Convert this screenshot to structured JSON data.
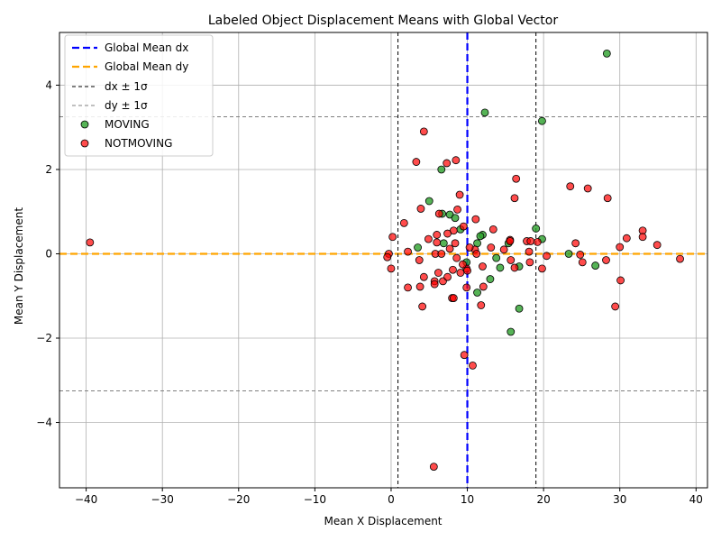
{
  "chart_data": {
    "type": "scatter",
    "title": "Labeled Object Displacement Means with Global Vector",
    "xlabel": "Mean X Displacement",
    "ylabel": "Mean Y Displacement",
    "xlim": [
      -43.5,
      41.5
    ],
    "ylim": [
      -5.55,
      5.25
    ],
    "xticks": [
      -40,
      -30,
      -20,
      -10,
      0,
      10,
      20,
      30,
      40
    ],
    "yticks": [
      -4,
      -2,
      0,
      2,
      4
    ],
    "grid": true,
    "legend_position": "top-left",
    "reference_lines": [
      {
        "name": "Global Mean dx",
        "orientation": "vertical",
        "value": 10.0,
        "color": "#0000ff",
        "style": "dashed-thick"
      },
      {
        "name": "Global Mean dy",
        "orientation": "horizontal",
        "value": 0.0,
        "color": "#ffa500",
        "style": "dashed-thick"
      },
      {
        "name": "dx ± 1σ",
        "orientation": "vertical",
        "values": [
          0.9,
          19.0
        ],
        "color": "#000000",
        "style": "dashed-thin"
      },
      {
        "name": "dy ± 1σ",
        "orientation": "horizontal",
        "values": [
          3.25,
          -3.25
        ],
        "color": "#808080",
        "style": "dashed-thin"
      }
    ],
    "series": [
      {
        "name": "MOVING",
        "color": "#2ca02c",
        "points": [
          [
            28.3,
            4.75
          ],
          [
            12.3,
            3.35
          ],
          [
            19.8,
            3.15
          ],
          [
            6.6,
            2.0
          ],
          [
            5.0,
            1.25
          ],
          [
            6.7,
            0.95
          ],
          [
            7.7,
            0.93
          ],
          [
            8.4,
            0.85
          ],
          [
            9.1,
            0.58
          ],
          [
            12.0,
            0.45
          ],
          [
            11.7,
            0.42
          ],
          [
            19.0,
            0.6
          ],
          [
            19.8,
            0.35
          ],
          [
            3.5,
            0.15
          ],
          [
            6.9,
            0.25
          ],
          [
            11.3,
            0.25
          ],
          [
            15.4,
            0.25
          ],
          [
            16.8,
            -0.3
          ],
          [
            14.3,
            -0.33
          ],
          [
            13.0,
            -0.6
          ],
          [
            11.3,
            -0.92
          ],
          [
            16.8,
            -1.3
          ],
          [
            15.7,
            -1.85
          ],
          [
            26.8,
            -0.28
          ],
          [
            23.3,
            0.0
          ],
          [
            13.8,
            -0.1
          ],
          [
            9.9,
            -0.2
          ]
        ]
      },
      {
        "name": "NOTMOVING",
        "color": "#ff0000",
        "points": [
          [
            -39.5,
            0.27
          ],
          [
            4.3,
            2.9
          ],
          [
            3.3,
            2.18
          ],
          [
            7.3,
            2.15
          ],
          [
            8.5,
            2.22
          ],
          [
            16.4,
            1.78
          ],
          [
            9.0,
            1.4
          ],
          [
            3.9,
            1.07
          ],
          [
            8.7,
            1.05
          ],
          [
            6.3,
            0.95
          ],
          [
            11.1,
            0.82
          ],
          [
            1.7,
            0.73
          ],
          [
            9.5,
            0.65
          ],
          [
            8.2,
            0.55
          ],
          [
            7.4,
            0.48
          ],
          [
            13.4,
            0.58
          ],
          [
            6.0,
            0.45
          ],
          [
            0.2,
            0.4
          ],
          [
            4.9,
            0.35
          ],
          [
            6.0,
            0.27
          ],
          [
            8.4,
            0.25
          ],
          [
            15.6,
            0.33
          ],
          [
            15.6,
            0.3
          ],
          [
            17.8,
            0.3
          ],
          [
            18.3,
            0.3
          ],
          [
            19.2,
            0.28
          ],
          [
            16.2,
            1.32
          ],
          [
            23.5,
            1.6
          ],
          [
            25.8,
            1.55
          ],
          [
            28.4,
            1.32
          ],
          [
            33.0,
            0.55
          ],
          [
            33.0,
            0.4
          ],
          [
            30.9,
            0.37
          ],
          [
            34.9,
            0.21
          ],
          [
            24.2,
            0.25
          ],
          [
            30.0,
            0.16
          ],
          [
            13.1,
            0.15
          ],
          [
            14.8,
            0.1
          ],
          [
            7.7,
            0.12
          ],
          [
            11.0,
            0.1
          ],
          [
            2.2,
            0.05
          ],
          [
            -0.3,
            0.0
          ],
          [
            5.8,
            0.0
          ],
          [
            18.1,
            0.05
          ],
          [
            20.4,
            -0.05
          ],
          [
            24.8,
            -0.02
          ],
          [
            37.9,
            -0.12
          ],
          [
            28.2,
            -0.15
          ],
          [
            25.1,
            -0.2
          ],
          [
            18.2,
            -0.2
          ],
          [
            15.7,
            -0.15
          ],
          [
            12.0,
            -0.3
          ],
          [
            9.9,
            -0.35
          ],
          [
            8.1,
            -0.38
          ],
          [
            6.2,
            -0.45
          ],
          [
            4.3,
            -0.55
          ],
          [
            5.7,
            -0.65
          ],
          [
            6.8,
            -0.65
          ],
          [
            5.7,
            -0.72
          ],
          [
            2.2,
            -0.8
          ],
          [
            3.8,
            -0.78
          ],
          [
            12.1,
            -0.78
          ],
          [
            9.9,
            -0.8
          ],
          [
            8.0,
            -1.05
          ],
          [
            8.2,
            -1.05
          ],
          [
            4.1,
            -1.25
          ],
          [
            11.8,
            -1.22
          ],
          [
            29.4,
            -1.25
          ],
          [
            30.1,
            -0.63
          ],
          [
            19.8,
            -0.35
          ],
          [
            16.2,
            -0.33
          ],
          [
            0.0,
            -0.35
          ],
          [
            -0.5,
            -0.08
          ],
          [
            3.7,
            -0.15
          ],
          [
            9.6,
            -2.4
          ],
          [
            10.7,
            -2.65
          ],
          [
            5.6,
            -5.05
          ],
          [
            7.4,
            -0.55
          ],
          [
            9.1,
            -0.45
          ],
          [
            10.0,
            -0.4
          ],
          [
            9.4,
            -0.25
          ],
          [
            11.2,
            0.0
          ],
          [
            10.3,
            0.15
          ],
          [
            8.6,
            -0.1
          ],
          [
            6.6,
            0.0
          ]
        ]
      }
    ]
  }
}
